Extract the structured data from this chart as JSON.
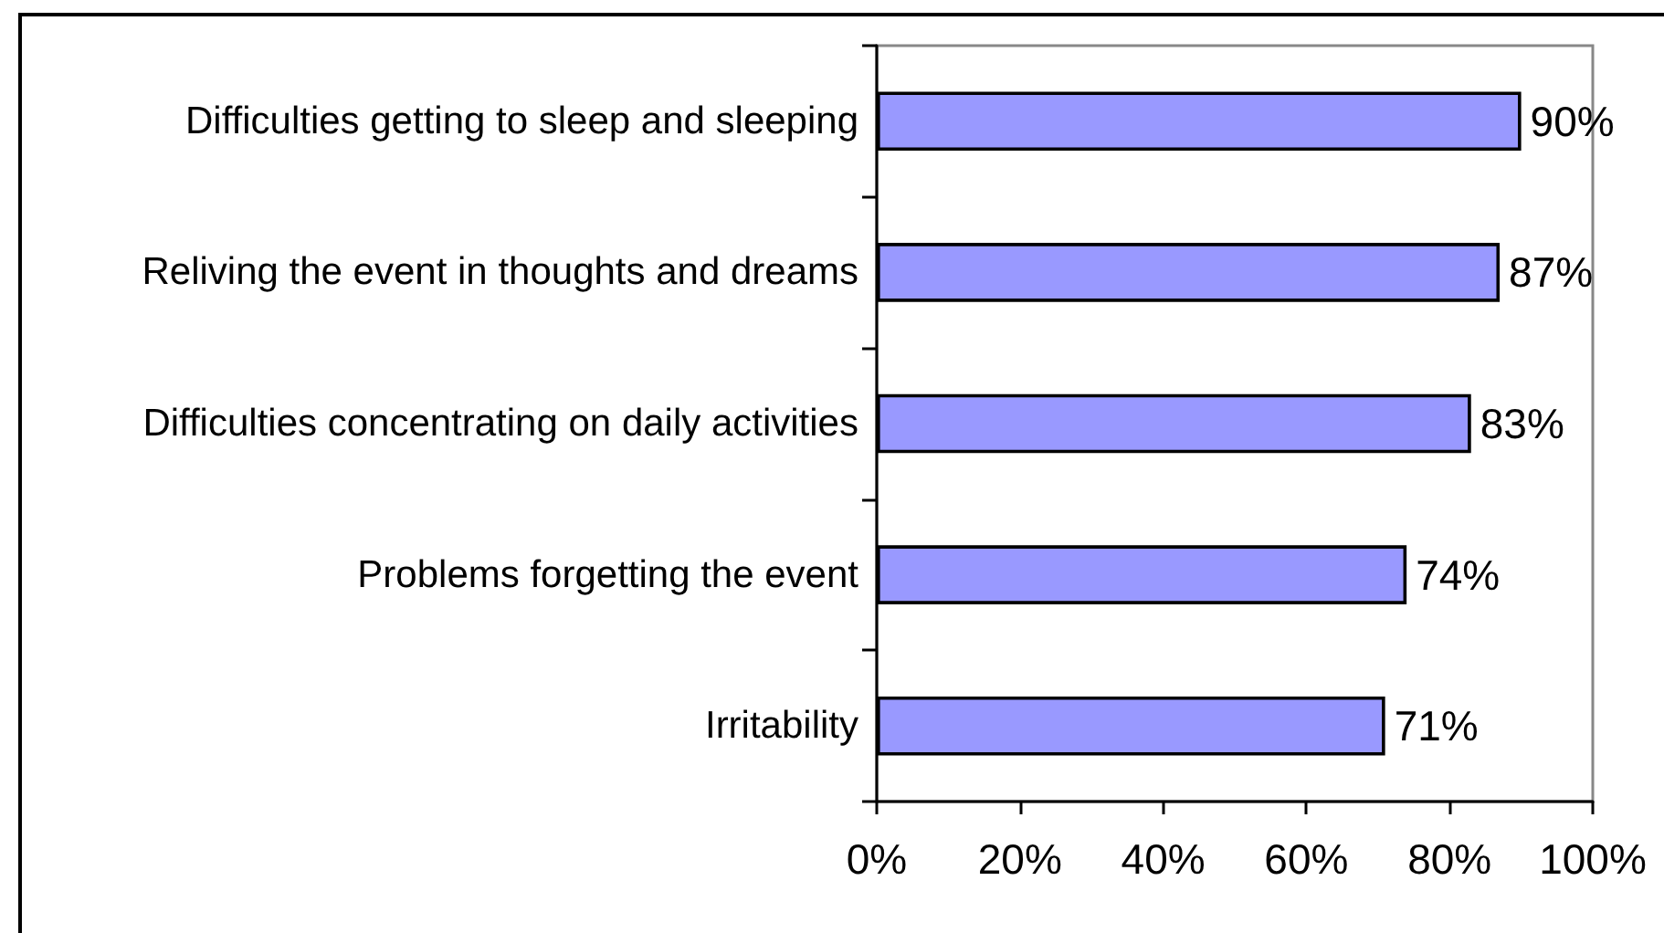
{
  "chart_data": {
    "type": "bar",
    "orientation": "horizontal",
    "categories": [
      "Difficulties getting to sleep and sleeping",
      "Reliving the event in thoughts and dreams",
      "Difficulties concentrating on daily activities",
      "Problems forgetting the event",
      "Irritability"
    ],
    "values": [
      90,
      87,
      83,
      74,
      71
    ],
    "color": "#9999ff",
    "value_labels": [
      "90%",
      "87%",
      "83%",
      "74%",
      "71%"
    ],
    "xlim": [
      0,
      100
    ],
    "xticks": [
      {
        "value": 0,
        "label": "0%"
      },
      {
        "value": 20,
        "label": "20%"
      },
      {
        "value": 40,
        "label": "40%"
      },
      {
        "value": 60,
        "label": "60%"
      },
      {
        "value": 80,
        "label": "80%"
      },
      {
        "value": 100,
        "label": "100%"
      }
    ],
    "grid": false
  }
}
